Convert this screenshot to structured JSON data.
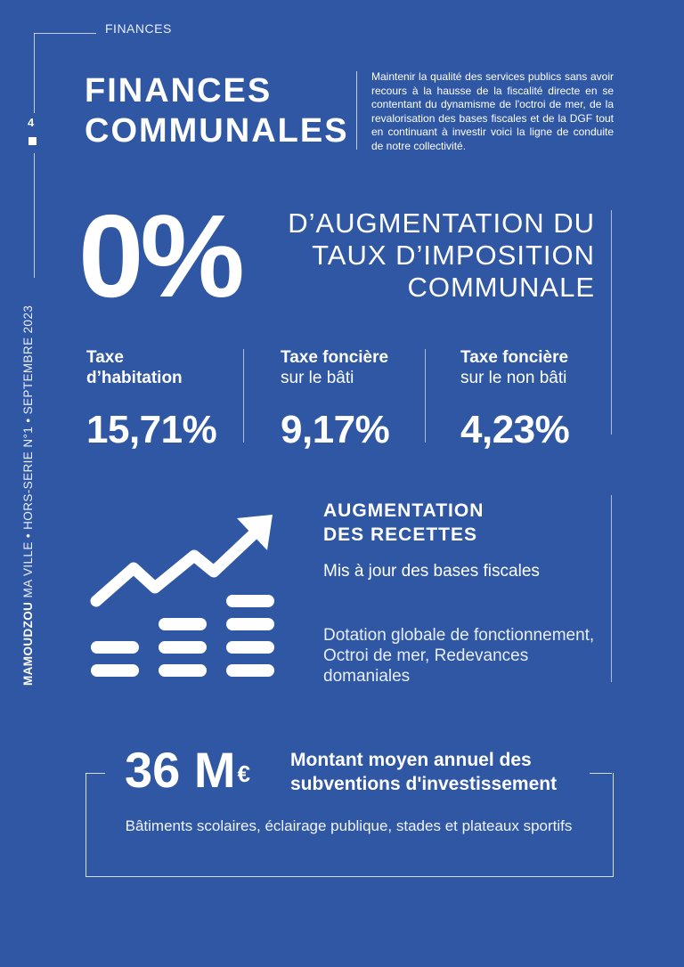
{
  "header": {
    "section": "FINANCES",
    "page_number": "4"
  },
  "sidebar": {
    "brand": "MAMOUDZOU",
    "issue": "MA VILLE • HORS-SERIE N°1 • SEPTEMBRE 2023"
  },
  "title": {
    "line1": "FINANCES",
    "line2": "COMMUNALES"
  },
  "intro": "Maintenir la qualité des services publics sans avoir recours à la hausse de la fiscalité directe en se contentant du dynamisme de l'octroi de mer, de la revalorisation des bases fiscales et de la DGF tout en continuant à investir voici la ligne de conduite de notre collectivité.",
  "headline": {
    "value": "0%",
    "line1": "D’AUGMENTATION DU",
    "line2": "TAUX D’IMPOSITION",
    "line3": "COMMUNALE"
  },
  "taxes": [
    {
      "label_bold": "Taxe",
      "label_rest": "d’habitation",
      "value": "15,71%"
    },
    {
      "label_bold": "Taxe foncière",
      "label_rest": "sur le bâti",
      "value": "9,17%"
    },
    {
      "label_bold": "Taxe foncière",
      "label_rest": "sur le non bâti",
      "value": "4,23%"
    }
  ],
  "recettes": {
    "title_line1": "AUGMENTATION",
    "title_line2": "DES RECETTES",
    "item1": "Mis à jour des bases fiscales",
    "item2": "Dotation globale de fonctionnement, Octroi de mer, Redevances domaniales",
    "icon": "growth-chart-icon"
  },
  "investment": {
    "amount": "36 M",
    "currency": "€",
    "label_line1": "Montant moyen annuel des",
    "label_line2": "subventions d'investissement",
    "description": "Bâtiments scolaires,  éclairage publique, stades et plateaux sportifs"
  },
  "colors": {
    "background": "#2f57a4",
    "text": "#ffffff"
  }
}
